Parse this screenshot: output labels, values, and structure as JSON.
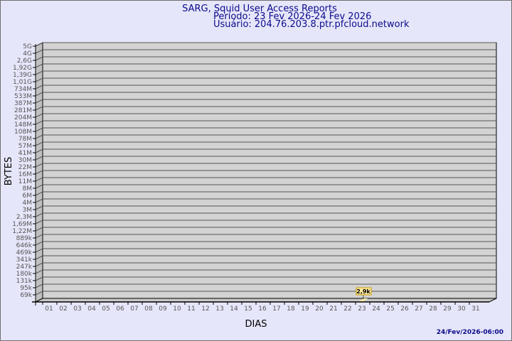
{
  "title": "SARG, Squid User Access Reports",
  "period": "Período: 23 Fev 2026-24 Fev 2026",
  "user": "Usuário: 204.76.203.8.ptr.pfcloud.network",
  "footer": "24/Fev/2026-06:00",
  "colors": {
    "background": "#e6e6fa",
    "plot": "#d3d3d3",
    "bar": "#ffe9a0",
    "title": "#0a0a8c"
  },
  "chart_data": {
    "type": "bar",
    "xlabel": "DIAS",
    "ylabel": "BYTES",
    "grid": true,
    "y_ticks": [
      "5G",
      "4G",
      "2,6G",
      "1,92G",
      "1,39G",
      "1,01G",
      "734M",
      "533M",
      "387M",
      "281M",
      "204M",
      "148M",
      "108M",
      "78M",
      "57M",
      "41M",
      "30M",
      "22M",
      "16M",
      "11M",
      "8M",
      "6M",
      "4M",
      "3M",
      "2,3M",
      "1,69M",
      "1,22M",
      "889k",
      "646k",
      "469k",
      "341k",
      "247k",
      "180k",
      "131k",
      "95k",
      "69k"
    ],
    "categories": [
      "01",
      "02",
      "03",
      "04",
      "05",
      "06",
      "07",
      "08",
      "09",
      "10",
      "11",
      "12",
      "13",
      "14",
      "15",
      "16",
      "17",
      "18",
      "19",
      "20",
      "21",
      "22",
      "23",
      "24",
      "25",
      "26",
      "27",
      "28",
      "29",
      "30",
      "31"
    ],
    "points": [
      {
        "x": "23",
        "value": 2900,
        "label": "2,9k"
      }
    ]
  }
}
